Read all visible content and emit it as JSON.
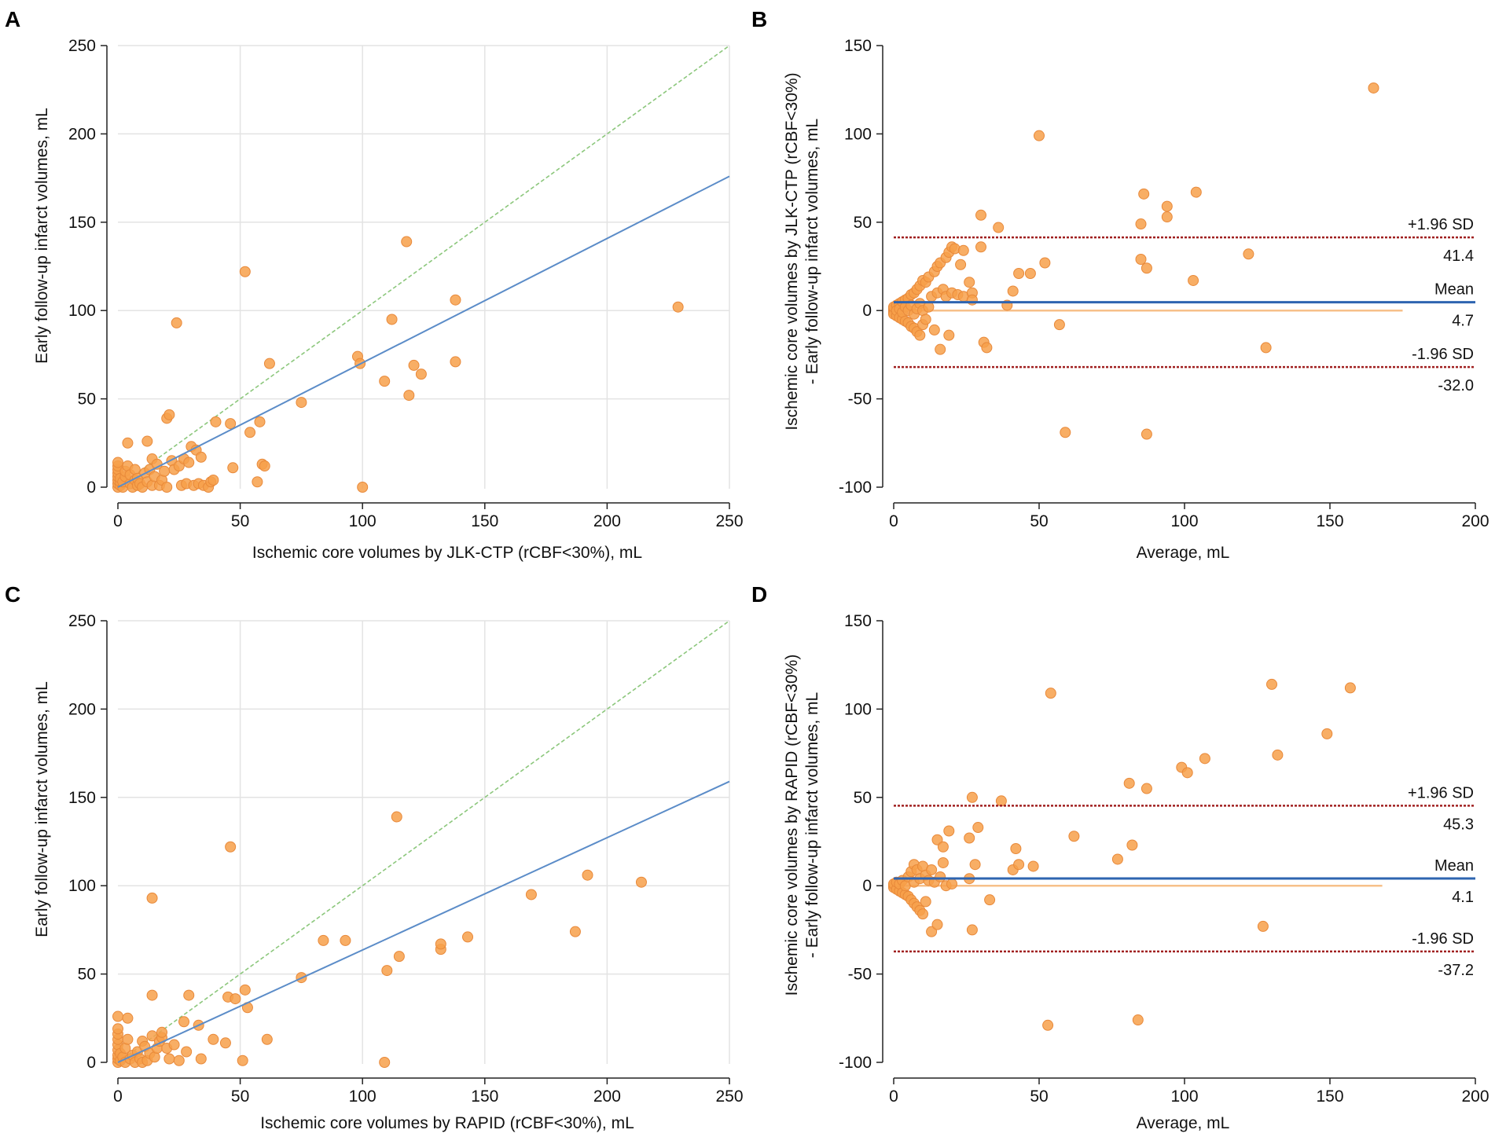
{
  "chart_data": [
    {
      "panel": "A",
      "type": "scatter",
      "xlabel": "Ischemic core volumes by JLK-CTP (rCBF<30%), mL",
      "ylabel": "Early follow-up infarct volumes, mL",
      "xlim": [
        0,
        250
      ],
      "ylim": [
        0,
        250
      ],
      "xticks": [
        0,
        50,
        100,
        150,
        200,
        250
      ],
      "yticks": [
        0,
        50,
        100,
        150,
        200,
        250
      ],
      "grid": true,
      "colors": {
        "points": "#f7a04a",
        "regression": "#5b8cc8",
        "identity": "#8cc77c"
      },
      "regression_line": {
        "x": [
          0,
          250
        ],
        "y": [
          0,
          176
        ]
      },
      "identity_line": {
        "x": [
          0,
          250
        ],
        "y": [
          0,
          250
        ]
      },
      "points": [
        [
          0,
          0
        ],
        [
          0,
          2
        ],
        [
          0,
          4
        ],
        [
          0,
          6
        ],
        [
          0,
          8
        ],
        [
          0,
          10
        ],
        [
          0,
          12
        ],
        [
          0,
          14
        ],
        [
          1,
          1
        ],
        [
          1,
          3
        ],
        [
          1,
          5
        ],
        [
          2,
          0
        ],
        [
          2,
          3
        ],
        [
          3,
          6
        ],
        [
          3,
          9
        ],
        [
          4,
          25
        ],
        [
          4,
          12
        ],
        [
          5,
          2
        ],
        [
          5,
          7
        ],
        [
          6,
          0
        ],
        [
          7,
          4
        ],
        [
          7,
          10
        ],
        [
          8,
          1
        ],
        [
          8,
          5
        ],
        [
          9,
          2
        ],
        [
          10,
          0
        ],
        [
          11,
          8
        ],
        [
          12,
          26
        ],
        [
          12,
          3
        ],
        [
          13,
          10
        ],
        [
          14,
          1
        ],
        [
          14,
          16
        ],
        [
          15,
          6
        ],
        [
          16,
          13
        ],
        [
          17,
          1
        ],
        [
          18,
          4
        ],
        [
          19,
          9
        ],
        [
          20,
          0
        ],
        [
          20,
          39
        ],
        [
          21,
          41
        ],
        [
          22,
          15
        ],
        [
          23,
          10
        ],
        [
          24,
          93
        ],
        [
          25,
          12
        ],
        [
          26,
          1
        ],
        [
          27,
          16
        ],
        [
          28,
          2
        ],
        [
          29,
          14
        ],
        [
          30,
          23
        ],
        [
          31,
          1
        ],
        [
          32,
          21
        ],
        [
          33,
          2
        ],
        [
          34,
          17
        ],
        [
          35,
          1
        ],
        [
          37,
          0
        ],
        [
          38,
          3
        ],
        [
          39,
          4
        ],
        [
          40,
          37
        ],
        [
          46,
          36
        ],
        [
          47,
          11
        ],
        [
          52,
          122
        ],
        [
          54,
          31
        ],
        [
          57,
          3
        ],
        [
          58,
          37
        ],
        [
          59,
          13
        ],
        [
          60,
          12
        ],
        [
          62,
          70
        ],
        [
          75,
          48
        ],
        [
          98,
          74
        ],
        [
          99,
          70
        ],
        [
          100,
          0
        ],
        [
          109,
          60
        ],
        [
          112,
          95
        ],
        [
          118,
          139
        ],
        [
          119,
          52
        ],
        [
          121,
          69
        ],
        [
          124,
          64
        ],
        [
          138,
          106
        ],
        [
          138,
          71
        ],
        [
          229,
          102
        ]
      ]
    },
    {
      "panel": "B",
      "type": "scatter",
      "xlabel": "Average, mL",
      "ylabel": "Ischemic core volumes by JLK-CTP (rCBF<30%)",
      "ylabel2": "- Early follow-up infarct volumes, mL",
      "xlim": [
        0,
        200
      ],
      "ylim": [
        -100,
        150
      ],
      "xticks": [
        0,
        50,
        100,
        150,
        200
      ],
      "yticks": [
        -100,
        -50,
        0,
        50,
        100,
        150
      ],
      "grid": false,
      "colors": {
        "points": "#f7a04a",
        "mean": "#2e64b0",
        "limits": "#a02020",
        "zero": "#f7c08a"
      },
      "mean": 4.7,
      "upper": 41.4,
      "lower": -32.0,
      "mean_text": "Mean",
      "mean_value": "4.7",
      "upper_text": "+1.96 SD",
      "upper_value": "41.4",
      "lower_text": "-1.96 SD",
      "lower_value": "-32.0",
      "zero_line_end": 175,
      "points": [
        [
          0,
          0
        ],
        [
          0,
          -1
        ],
        [
          0,
          1
        ],
        [
          0,
          -2
        ],
        [
          0,
          2
        ],
        [
          1,
          -3
        ],
        [
          1,
          3
        ],
        [
          1,
          0
        ],
        [
          2,
          -4
        ],
        [
          2,
          4
        ],
        [
          2,
          1
        ],
        [
          3,
          -5
        ],
        [
          3,
          5
        ],
        [
          3,
          -1
        ],
        [
          4,
          -6
        ],
        [
          4,
          6
        ],
        [
          4,
          2
        ],
        [
          5,
          -7
        ],
        [
          5,
          7
        ],
        [
          5,
          0
        ],
        [
          6,
          -9
        ],
        [
          6,
          9
        ],
        [
          6,
          3
        ],
        [
          7,
          -10
        ],
        [
          7,
          10
        ],
        [
          7,
          -2
        ],
        [
          8,
          -12
        ],
        [
          8,
          12
        ],
        [
          8,
          1
        ],
        [
          9,
          -14
        ],
        [
          9,
          14
        ],
        [
          9,
          4
        ],
        [
          10,
          -8
        ],
        [
          10,
          17
        ],
        [
          10,
          0
        ],
        [
          11,
          16
        ],
        [
          11,
          -5
        ],
        [
          12,
          19
        ],
        [
          12,
          2
        ],
        [
          13,
          8
        ],
        [
          14,
          22
        ],
        [
          14,
          -11
        ],
        [
          15,
          10
        ],
        [
          15,
          25
        ],
        [
          16,
          -22
        ],
        [
          16,
          27
        ],
        [
          17,
          12
        ],
        [
          18,
          30
        ],
        [
          18,
          8
        ],
        [
          19,
          33
        ],
        [
          19,
          -14
        ],
        [
          20,
          36
        ],
        [
          20,
          10
        ],
        [
          21,
          35
        ],
        [
          22,
          9
        ],
        [
          23,
          26
        ],
        [
          24,
          34
        ],
        [
          24,
          8
        ],
        [
          26,
          16
        ],
        [
          27,
          10
        ],
        [
          27,
          6
        ],
        [
          30,
          36
        ],
        [
          30,
          54
        ],
        [
          31,
          -18
        ],
        [
          32,
          -21
        ],
        [
          36,
          47
        ],
        [
          39,
          3
        ],
        [
          41,
          11
        ],
        [
          43,
          21
        ],
        [
          47,
          21
        ],
        [
          50,
          99
        ],
        [
          52,
          27
        ],
        [
          57,
          -8
        ],
        [
          59,
          -69
        ],
        [
          85,
          49
        ],
        [
          85,
          29
        ],
        [
          86,
          66
        ],
        [
          87,
          24
        ],
        [
          87,
          -70
        ],
        [
          94,
          59
        ],
        [
          94,
          53
        ],
        [
          103,
          17
        ],
        [
          104,
          67
        ],
        [
          122,
          32
        ],
        [
          128,
          -21
        ],
        [
          165,
          126
        ]
      ]
    },
    {
      "panel": "C",
      "type": "scatter",
      "xlabel": "Ischemic core volumes by RAPID (rCBF<30%), mL",
      "ylabel": "Early follow-up infarct volumes, mL",
      "xlim": [
        0,
        250
      ],
      "ylim": [
        0,
        250
      ],
      "xticks": [
        0,
        50,
        100,
        150,
        200,
        250
      ],
      "yticks": [
        0,
        50,
        100,
        150,
        200,
        250
      ],
      "grid": true,
      "colors": {
        "points": "#f7a04a",
        "regression": "#5b8cc8",
        "identity": "#8cc77c"
      },
      "regression_line": {
        "x": [
          0,
          250
        ],
        "y": [
          0,
          159
        ]
      },
      "identity_line": {
        "x": [
          0,
          250
        ],
        "y": [
          0,
          250
        ]
      },
      "points": [
        [
          0,
          0
        ],
        [
          0,
          2
        ],
        [
          0,
          4
        ],
        [
          0,
          7
        ],
        [
          0,
          10
        ],
        [
          0,
          13
        ],
        [
          0,
          16
        ],
        [
          0,
          19
        ],
        [
          0,
          26
        ],
        [
          1,
          1
        ],
        [
          1,
          5
        ],
        [
          2,
          3
        ],
        [
          3,
          0
        ],
        [
          3,
          8
        ],
        [
          4,
          25
        ],
        [
          4,
          13
        ],
        [
          5,
          2
        ],
        [
          6,
          4
        ],
        [
          7,
          0
        ],
        [
          8,
          6
        ],
        [
          9,
          2
        ],
        [
          10,
          0
        ],
        [
          10,
          12
        ],
        [
          11,
          9
        ],
        [
          12,
          1
        ],
        [
          13,
          5
        ],
        [
          14,
          93
        ],
        [
          14,
          38
        ],
        [
          14,
          15
        ],
        [
          15,
          3
        ],
        [
          16,
          8
        ],
        [
          17,
          12
        ],
        [
          18,
          14
        ],
        [
          18,
          17
        ],
        [
          20,
          8
        ],
        [
          21,
          2
        ],
        [
          23,
          10
        ],
        [
          25,
          1
        ],
        [
          27,
          23
        ],
        [
          28,
          6
        ],
        [
          29,
          38
        ],
        [
          33,
          21
        ],
        [
          34,
          2
        ],
        [
          39,
          13
        ],
        [
          44,
          11
        ],
        [
          45,
          37
        ],
        [
          46,
          122
        ],
        [
          48,
          36
        ],
        [
          51,
          1
        ],
        [
          52,
          41
        ],
        [
          53,
          31
        ],
        [
          61,
          13
        ],
        [
          75,
          48
        ],
        [
          84,
          69
        ],
        [
          93,
          69
        ],
        [
          109,
          0
        ],
        [
          110,
          52
        ],
        [
          114,
          139
        ],
        [
          115,
          60
        ],
        [
          132,
          64
        ],
        [
          132,
          67
        ],
        [
          143,
          71
        ],
        [
          169,
          95
        ],
        [
          187,
          74
        ],
        [
          192,
          106
        ],
        [
          214,
          102
        ]
      ]
    },
    {
      "panel": "D",
      "type": "scatter",
      "xlabel": "Average, mL",
      "ylabel": "Ischemic core volumes by RAPID (rCBF<30%)",
      "ylabel2": "- Early follow-up infarct volumes, mL",
      "xlim": [
        0,
        200
      ],
      "ylim": [
        -100,
        150
      ],
      "xticks": [
        0,
        50,
        100,
        150,
        200
      ],
      "yticks": [
        -100,
        -50,
        0,
        50,
        100,
        150
      ],
      "grid": false,
      "colors": {
        "points": "#f7a04a",
        "mean": "#2e64b0",
        "limits": "#a02020",
        "zero": "#f7c08a"
      },
      "mean": 4.1,
      "upper": 45.3,
      "lower": -37.2,
      "mean_text": "Mean",
      "mean_value": "4.1",
      "upper_text": "+1.96 SD",
      "upper_value": "45.3",
      "lower_text": "-1.96 SD",
      "lower_value": "-37.2",
      "zero_line_end": 168,
      "points": [
        [
          0,
          0
        ],
        [
          0,
          -1
        ],
        [
          0,
          1
        ],
        [
          1,
          -2
        ],
        [
          1,
          2
        ],
        [
          2,
          -3
        ],
        [
          2,
          1
        ],
        [
          3,
          -4
        ],
        [
          3,
          3
        ],
        [
          4,
          -5
        ],
        [
          4,
          0
        ],
        [
          5,
          -6
        ],
        [
          5,
          5
        ],
        [
          6,
          -8
        ],
        [
          6,
          8
        ],
        [
          7,
          -10
        ],
        [
          7,
          2
        ],
        [
          7,
          12
        ],
        [
          8,
          -12
        ],
        [
          8,
          9
        ],
        [
          9,
          -14
        ],
        [
          9,
          4
        ],
        [
          10,
          -16
        ],
        [
          10,
          11
        ],
        [
          11,
          -9
        ],
        [
          11,
          6
        ],
        [
          12,
          3
        ],
        [
          13,
          -26
        ],
        [
          13,
          9
        ],
        [
          14,
          2
        ],
        [
          15,
          -22
        ],
        [
          15,
          26
        ],
        [
          16,
          5
        ],
        [
          17,
          22
        ],
        [
          17,
          13
        ],
        [
          18,
          0
        ],
        [
          19,
          31
        ],
        [
          20,
          1
        ],
        [
          26,
          4
        ],
        [
          26,
          27
        ],
        [
          27,
          50
        ],
        [
          27,
          -25
        ],
        [
          28,
          12
        ],
        [
          29,
          33
        ],
        [
          33,
          -8
        ],
        [
          37,
          48
        ],
        [
          41,
          9
        ],
        [
          42,
          21
        ],
        [
          43,
          12
        ],
        [
          48,
          11
        ],
        [
          53,
          -79
        ],
        [
          54,
          109
        ],
        [
          62,
          28
        ],
        [
          77,
          15
        ],
        [
          81,
          58
        ],
        [
          82,
          23
        ],
        [
          84,
          -76
        ],
        [
          87,
          55
        ],
        [
          99,
          67
        ],
        [
          101,
          64
        ],
        [
          107,
          72
        ],
        [
          127,
          -23
        ],
        [
          130,
          114
        ],
        [
          132,
          74
        ],
        [
          149,
          86
        ],
        [
          157,
          112
        ]
      ]
    }
  ],
  "panels": {
    "A": "A",
    "B": "B",
    "C": "C",
    "D": "D"
  }
}
